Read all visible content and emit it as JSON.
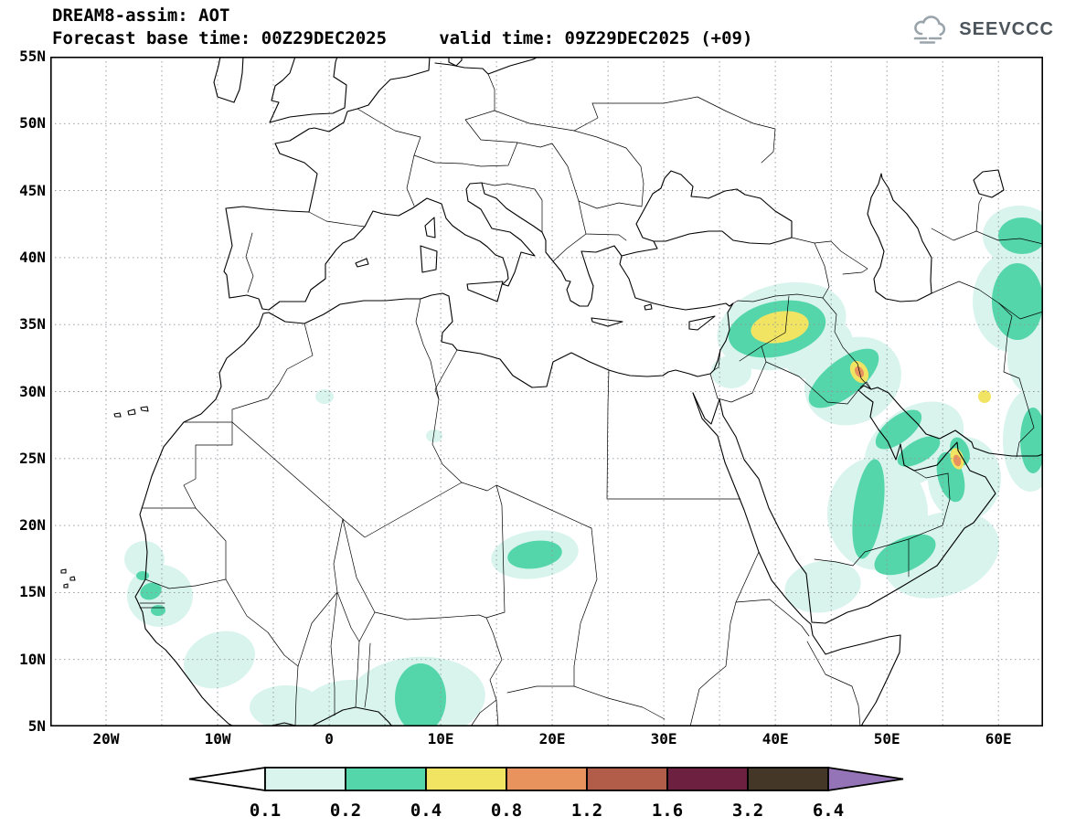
{
  "header": {
    "title": "DREAM8-assim: AOT",
    "subtitle": "Forecast base time: 00Z29DEC2025     valid time: 09Z29DEC2025 (+09)"
  },
  "logo": {
    "text": "SEEVCCC",
    "icon": "cloud-icon",
    "text_color": "#4c545c",
    "icon_color": "#9aa4ab"
  },
  "chart_data": {
    "type": "heatmap",
    "model": "DREAM8-assim",
    "variable": "AOT (aerosol optical thickness)",
    "title": "DREAM8-assim: AOT",
    "forecast_base_time": "00Z29DEC2025",
    "valid_time": "09Z29DEC2025",
    "lead": "+09",
    "map": {
      "projection": "latlon",
      "lon_min": -25,
      "lon_max": 64,
      "lat_min": 5,
      "lat_max": 55,
      "grid_step_deg": 5,
      "grid_style": "dotted",
      "x_ticks": [
        {
          "label": "20W",
          "lon": -20
        },
        {
          "label": "10W",
          "lon": -10
        },
        {
          "label": "0",
          "lon": 0
        },
        {
          "label": "10E",
          "lon": 10
        },
        {
          "label": "20E",
          "lon": 20
        },
        {
          "label": "30E",
          "lon": 30
        },
        {
          "label": "40E",
          "lon": 40
        },
        {
          "label": "50E",
          "lon": 50
        },
        {
          "label": "60E",
          "lon": 60
        }
      ],
      "y_ticks": [
        {
          "label": "55N",
          "lat": 55
        },
        {
          "label": "50N",
          "lat": 50
        },
        {
          "label": "45N",
          "lat": 45
        },
        {
          "label": "40N",
          "lat": 40
        },
        {
          "label": "35N",
          "lat": 35
        },
        {
          "label": "30N",
          "lat": 30
        },
        {
          "label": "25N",
          "lat": 25
        },
        {
          "label": "20N",
          "lat": 20
        },
        {
          "label": "15N",
          "lat": 15
        },
        {
          "label": "10N",
          "lat": 10
        },
        {
          "label": "5N",
          "lat": 5
        }
      ]
    },
    "legend": {
      "orientation": "horizontal",
      "labels": [
        "0.1",
        "0.2",
        "0.4",
        "0.8",
        "1.2",
        "1.6",
        "3.2",
        "6.4"
      ],
      "thresholds": [
        0.1,
        0.2,
        0.4,
        0.8,
        1.2,
        1.6,
        3.2,
        6.4
      ],
      "band_colors": [
        "#ffffff",
        "#d8f4ed",
        "#54d6aa",
        "#f1e463",
        "#e8935e",
        "#b25c4a",
        "#6e2040",
        "#443727",
        "#9473b6"
      ]
    },
    "regions": [
      {
        "area": "Syria - northern/central Iraq",
        "approx_lon": [
          35,
          45
        ],
        "approx_lat": [
          30,
          37
        ],
        "peak_band": "0.4-0.8"
      },
      {
        "area": "central Iraq spot (~47E, 30N)",
        "approx_lon": [
          46,
          48
        ],
        "approx_lat": [
          29,
          31
        ],
        "peak_band": "0.8-1.2"
      },
      {
        "area": "Persian Gulf - eastern Saudi Arabia band",
        "approx_lon": [
          45,
          56
        ],
        "approx_lat": [
          15,
          30
        ],
        "peak_band": "0.2-0.4"
      },
      {
        "area": "Strait of Hormuz / UAE spot",
        "approx_lon": [
          55,
          57
        ],
        "approx_lat": [
          24,
          26
        ],
        "peak_band": "0.8-1.2"
      },
      {
        "area": "NE Iran - Turkmenistan (right edge)",
        "approx_lon": [
          58,
          64
        ],
        "approx_lat": [
          33,
          44
        ],
        "peak_band": "0.2-0.4"
      },
      {
        "area": "SE Iran / Makran coast (right edge)",
        "approx_lon": [
          60,
          64
        ],
        "approx_lat": [
          22,
          30
        ],
        "peak_band": "0.4-0.8"
      },
      {
        "area": "Bodele region, Chad",
        "approx_lon": [
          16,
          21
        ],
        "approx_lat": [
          17,
          19.5
        ],
        "peak_band": "0.2-0.4"
      },
      {
        "area": "Gulf of Guinea / Nigeria - Benin",
        "approx_lon": [
          -3,
          12
        ],
        "approx_lat": [
          5,
          11
        ],
        "peak_band": "0.2-0.4"
      },
      {
        "area": "Senegal coast",
        "approx_lon": [
          -17,
          -14
        ],
        "approx_lat": [
          11,
          14
        ],
        "peak_band": "0.2-0.4"
      },
      {
        "area": "Yemen / southern Red Sea",
        "approx_lon": [
          42,
          48
        ],
        "approx_lat": [
          13,
          17
        ],
        "peak_band": "0.1-0.2"
      }
    ]
  }
}
